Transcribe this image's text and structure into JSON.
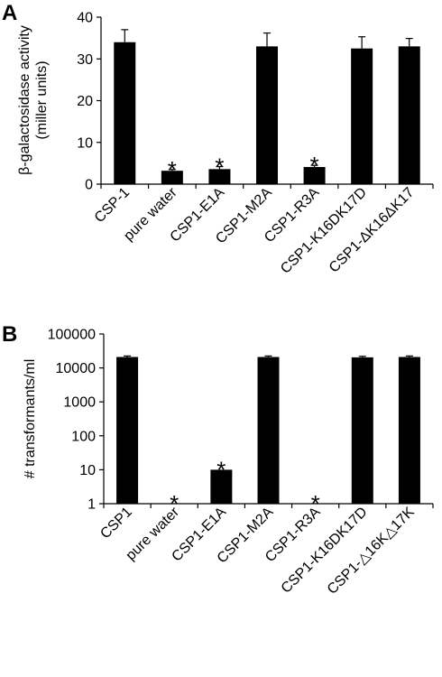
{
  "chart_data": [
    {
      "panel": "A",
      "type": "bar",
      "ylabel": "β-galactosidase activity (miller units)",
      "ylabel_lines": [
        "β-galactosidase activity",
        "(miller units)"
      ],
      "xlabel": "",
      "ylim": [
        0,
        40
      ],
      "yticks": [
        0,
        10,
        20,
        30,
        40
      ],
      "ytick_labels": [
        "0",
        "10",
        "20",
        "30",
        "40"
      ],
      "scale": "linear",
      "categories": [
        "CSP-1",
        "pure water",
        "CSP1-E1A",
        "CSP1-M2A",
        "CSP1-R3A",
        "CSP1-K16DK17D",
        "CSP1-ΔK16ΔK17"
      ],
      "values": [
        34,
        3.2,
        3.6,
        33,
        4.1,
        32.5,
        33
      ],
      "errors": [
        3,
        0.3,
        0.6,
        3.2,
        0.4,
        2.8,
        1.9
      ],
      "significant": [
        false,
        true,
        true,
        false,
        true,
        false,
        false
      ],
      "significance_mark": "*",
      "bar_color": "#000000",
      "grid": false
    },
    {
      "panel": "B",
      "type": "bar",
      "ylabel": "# transformants/ml",
      "xlabel": "",
      "ylim": [
        1,
        100000
      ],
      "yticks": [
        1,
        10,
        100,
        1000,
        10000,
        100000
      ],
      "ytick_labels": [
        "1",
        "10",
        "100",
        "1000",
        "10000",
        "100000"
      ],
      "scale": "log",
      "categories": [
        "CSP1",
        "pure water",
        "CSP1-E1A",
        "CSP1-M2A",
        "CSP1-R3A",
        "CSP1-K16DK17D",
        "CSP1-△16K△17K"
      ],
      "values": [
        21000,
        1,
        10,
        21000,
        1,
        20500,
        21000
      ],
      "errors": [
        1500,
        0,
        0,
        1500,
        0,
        1500,
        1500
      ],
      "significant": [
        false,
        true,
        true,
        false,
        true,
        false,
        false
      ],
      "significance_mark": "*",
      "bar_color": "#000000",
      "grid": false
    }
  ]
}
